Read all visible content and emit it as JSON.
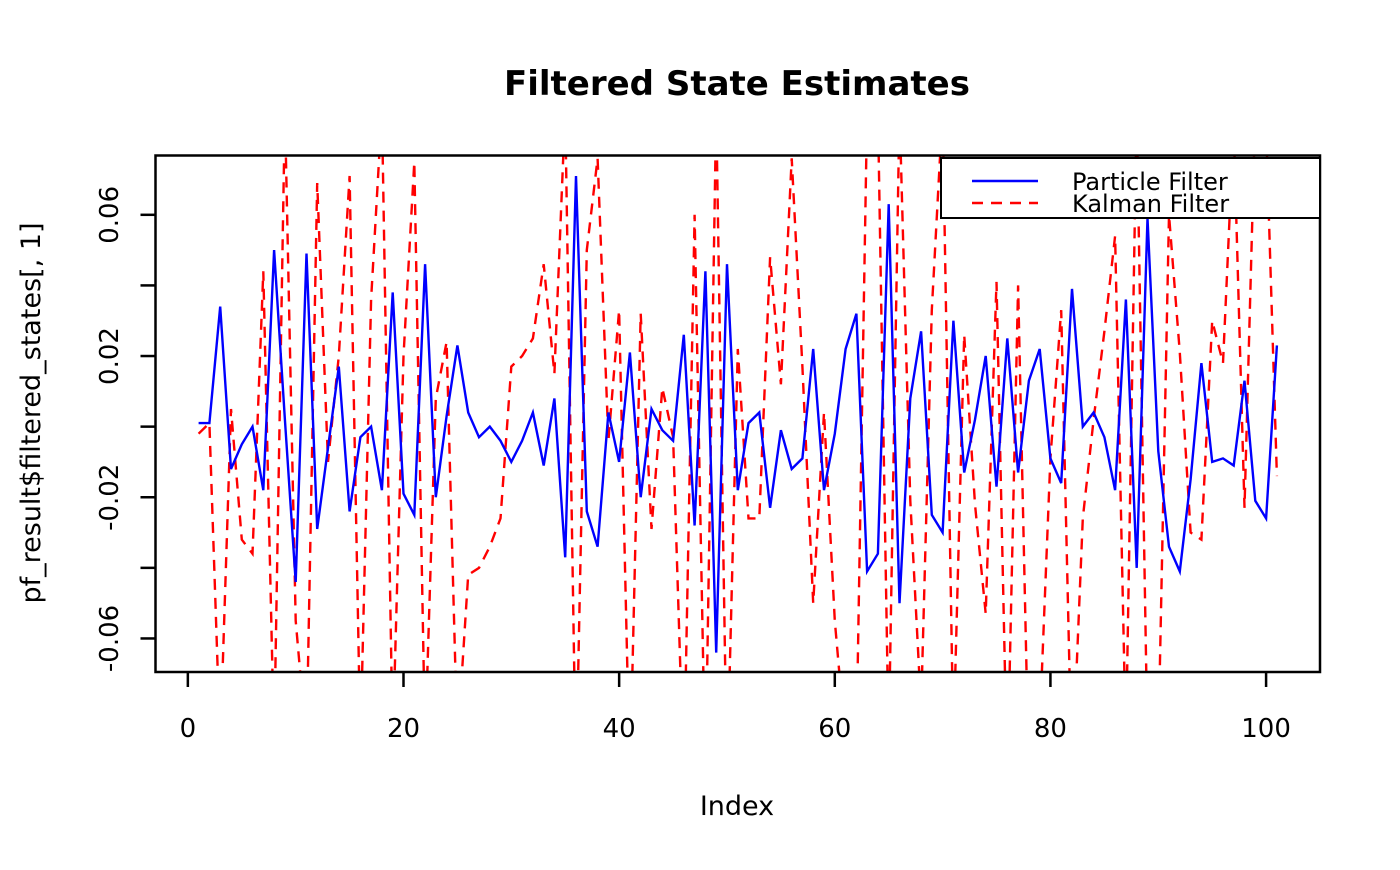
{
  "title": "Filtered State Estimates",
  "xlabel": "Index",
  "ylabel": "pf_result$filtered_states[, 1]",
  "legend": {
    "items": [
      {
        "label": "Particle Filter",
        "color": "#0000FF",
        "style": "solid"
      },
      {
        "label": "Kalman Filter",
        "color": "#FF0000",
        "style": "dashed"
      }
    ]
  },
  "axes": {
    "x_ticks": [
      {
        "v": 0,
        "l": "0"
      },
      {
        "v": 20,
        "l": "20"
      },
      {
        "v": 40,
        "l": "40"
      },
      {
        "v": 60,
        "l": "60"
      },
      {
        "v": 80,
        "l": "80"
      },
      {
        "v": 100,
        "l": "100"
      }
    ],
    "y_ticks": [
      {
        "v": -0.06,
        "l": "-0.06"
      },
      {
        "v": -0.04,
        "l": ""
      },
      {
        "v": -0.02,
        "l": "-0.02"
      },
      {
        "v": 0,
        "l": ""
      },
      {
        "v": 0.02,
        "l": "0.02"
      },
      {
        "v": 0.04,
        "l": ""
      },
      {
        "v": 0.06,
        "l": "0.06"
      }
    ]
  },
  "chart_data": {
    "type": "line",
    "title": "Filtered State Estimates",
    "xlabel": "Index",
    "ylabel": "pf_result$filtered_states[, 1]",
    "xlim": [
      -3,
      105
    ],
    "ylim": [
      -0.0695,
      0.0768
    ],
    "grid": false,
    "legend_position": "topright",
    "x_start_index": 1,
    "note": "Kalman Filter series frequently exceeds the y-range and is clipped at the plot box; clipped excursions recorded as +/-0.08 to 0.10",
    "series": [
      {
        "name": "Particle Filter",
        "color": "#0000FF",
        "line_style": "solid",
        "values": [
          0.001,
          0.001,
          0.034,
          -0.012,
          -0.005,
          0.0,
          -0.018,
          0.05,
          0.002,
          -0.044,
          0.049,
          -0.029,
          -0.006,
          0.017,
          -0.024,
          -0.003,
          0.0,
          -0.018,
          0.038,
          -0.019,
          -0.025,
          0.046,
          -0.02,
          0.003,
          0.023,
          0.004,
          -0.003,
          0.0,
          -0.004,
          -0.01,
          -0.004,
          0.004,
          -0.011,
          0.008,
          -0.037,
          0.071,
          -0.024,
          -0.034,
          0.004,
          -0.01,
          0.021,
          -0.02,
          0.005,
          -0.001,
          -0.004,
          0.026,
          -0.028,
          0.044,
          -0.064,
          0.046,
          -0.018,
          0.001,
          0.004,
          -0.023,
          -0.001,
          -0.012,
          -0.009,
          0.022,
          -0.018,
          -0.002,
          0.022,
          0.032,
          -0.041,
          -0.036,
          0.063,
          -0.05,
          0.008,
          0.027,
          -0.025,
          -0.03,
          0.03,
          -0.013,
          0.002,
          0.02,
          -0.017,
          0.025,
          -0.013,
          0.013,
          0.022,
          -0.009,
          -0.016,
          0.039,
          0.0,
          0.004,
          -0.003,
          -0.018,
          0.036,
          -0.04,
          0.059,
          -0.007,
          -0.034,
          -0.041,
          -0.015,
          0.018,
          -0.01,
          -0.009,
          -0.011,
          0.013,
          -0.021,
          -0.026,
          0.023
        ]
      },
      {
        "name": "Kalman Filter",
        "color": "#FF0000",
        "line_style": "dashed",
        "values": [
          -0.002,
          0.001,
          -0.09,
          0.005,
          -0.032,
          -0.036,
          0.044,
          -0.09,
          0.09,
          -0.055,
          -0.09,
          0.069,
          -0.01,
          0.02,
          0.071,
          -0.09,
          0.036,
          0.09,
          -0.09,
          0.02,
          0.075,
          -0.09,
          0.008,
          0.024,
          -0.09,
          -0.042,
          -0.04,
          -0.034,
          -0.026,
          0.017,
          0.02,
          0.025,
          0.046,
          0.015,
          0.09,
          -0.1,
          0.05,
          0.076,
          -0.004,
          0.033,
          -0.1,
          0.032,
          -0.029,
          0.011,
          -0.003,
          -0.1,
          0.06,
          -0.1,
          0.09,
          -0.1,
          0.022,
          -0.026,
          -0.026,
          0.048,
          0.012,
          0.076,
          0.017,
          -0.05,
          0.004,
          -0.055,
          -0.09,
          -0.09,
          0.09,
          0.09,
          -0.09,
          0.09,
          -0.021,
          -0.08,
          0.033,
          0.09,
          -0.09,
          0.026,
          -0.022,
          -0.053,
          0.041,
          -0.1,
          0.04,
          -0.1,
          -0.085,
          -0.009,
          0.033,
          -0.1,
          -0.026,
          0.002,
          0.027,
          0.054,
          -0.09,
          0.09,
          -0.09,
          -0.09,
          0.06,
          0.021,
          -0.03,
          -0.032,
          0.03,
          0.018,
          0.085,
          -0.023,
          0.09,
          0.085,
          -0.014
        ]
      }
    ]
  }
}
